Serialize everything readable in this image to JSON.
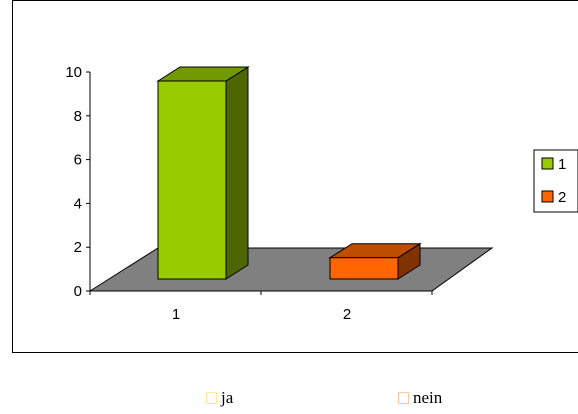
{
  "chart_data": {
    "type": "bar",
    "categories": [
      "1",
      "2"
    ],
    "values": [
      9.3,
      1.0
    ],
    "ylim": [
      0,
      10
    ],
    "yticks": [
      "0",
      "2",
      "4",
      "6",
      "8",
      "10"
    ],
    "grid": false,
    "legend": {
      "placement": "right",
      "entries": [
        {
          "label": "1",
          "color": "#99cc00"
        },
        {
          "label": "2",
          "color": "#ff6600"
        }
      ]
    },
    "colors": [
      "#99cc00",
      "#ff6600"
    ],
    "floor_color": "#808080"
  },
  "bottom_legend": [
    {
      "label": "ja",
      "color": "#ffe6a0"
    },
    {
      "label": "nein",
      "color": "#ffc8a0"
    }
  ]
}
